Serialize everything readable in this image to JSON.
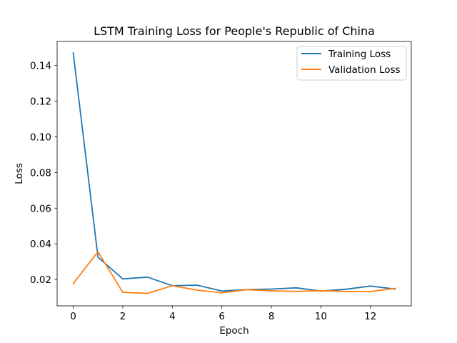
{
  "chart_data": {
    "type": "line",
    "title": "LSTM Training Loss for People's Republic of China",
    "xlabel": "Epoch",
    "ylabel": "Loss",
    "xlim": [
      -0.65,
      13.65
    ],
    "ylim": [
      0.0052,
      0.1535
    ],
    "xticks": [
      0,
      2,
      4,
      6,
      8,
      10,
      12
    ],
    "xtick_labels": [
      "0",
      "2",
      "4",
      "6",
      "8",
      "10",
      "12"
    ],
    "yticks": [
      0.02,
      0.04,
      0.06,
      0.08,
      0.1,
      0.12,
      0.14
    ],
    "ytick_labels": [
      "0.02",
      "0.04",
      "0.06",
      "0.08",
      "0.10",
      "0.12",
      "0.14"
    ],
    "grid": false,
    "legend_position": "upper right",
    "x": [
      0,
      1,
      2,
      3,
      4,
      5,
      6,
      7,
      8,
      9,
      10,
      11,
      12,
      13
    ],
    "series": [
      {
        "name": "Training Loss",
        "color": "#1f77b4",
        "values": [
          0.147,
          0.0325,
          0.0203,
          0.0213,
          0.0165,
          0.0168,
          0.0135,
          0.0143,
          0.0146,
          0.0153,
          0.0135,
          0.0145,
          0.0163,
          0.0146
        ]
      },
      {
        "name": "Validation Loss",
        "color": "#ff7f0e",
        "values": [
          0.0177,
          0.0355,
          0.0128,
          0.0122,
          0.0165,
          0.014,
          0.0125,
          0.0143,
          0.0136,
          0.0133,
          0.0137,
          0.0133,
          0.0132,
          0.015
        ]
      }
    ]
  }
}
